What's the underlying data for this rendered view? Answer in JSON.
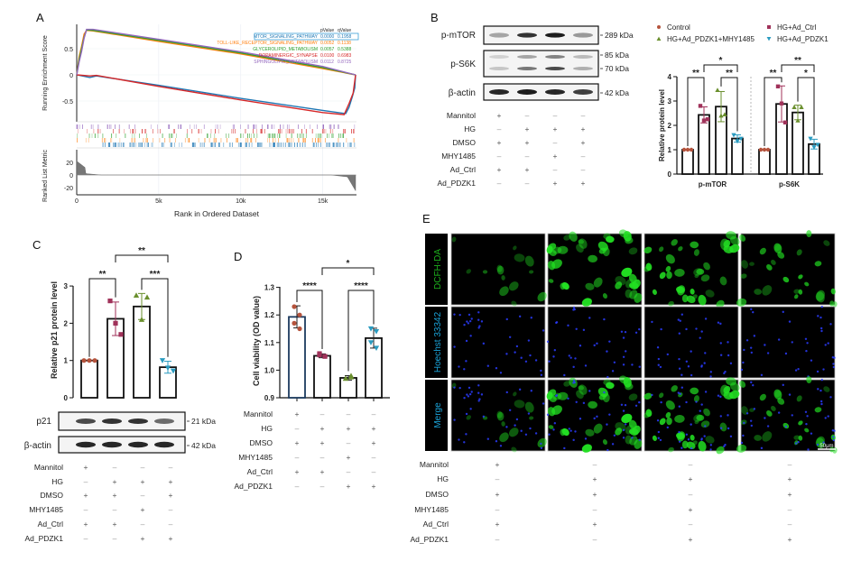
{
  "panel_labels": {
    "a": "A",
    "b": "B",
    "c": "C",
    "d": "D",
    "e": "E"
  },
  "chart_data": [
    {
      "type": "line",
      "panel": "A",
      "xlabel": "Rank in Ordered Dataset",
      "ylabel": "Running Enrichment Score",
      "ylabel2": "Ranked List Metric",
      "xticks": [
        "0",
        "5k",
        "10k",
        "15k"
      ],
      "xtick_values": [
        0,
        5000,
        10000,
        15000
      ],
      "yticks": [
        "0.5",
        "0",
        "-0.5"
      ],
      "ytick_values": [
        0.5,
        0,
        -0.5
      ],
      "y2ticks": [
        "20",
        "0",
        "-20"
      ],
      "y2tick_values": [
        20,
        0,
        -20
      ],
      "xlim": [
        0,
        17000
      ],
      "legend_header": {
        "pvalue": "pValue",
        "qvalue": "qValue"
      },
      "series": [
        {
          "name": "MTOR_SIGNALING_PATHWAY",
          "pvalue": "0.0000",
          "qvalue": "0.1958",
          "color": "#1f77b4",
          "highlight": true,
          "points": [
            [
              0,
              0
            ],
            [
              800,
              -0.05
            ],
            [
              1200,
              -0.02
            ],
            [
              5000,
              -0.2
            ],
            [
              10000,
              -0.45
            ],
            [
              15000,
              -0.68
            ],
            [
              16400,
              -0.74
            ],
            [
              16600,
              -0.62
            ],
            [
              16800,
              -0.42
            ],
            [
              16950,
              -0.25
            ],
            [
              17000,
              0
            ]
          ]
        },
        {
          "name": "TOLL-LIKE_RECEPTOR_SIGNALING_PATHWAY",
          "pvalue": "0.0052",
          "qvalue": "0.1138",
          "color": "#ff7f0e",
          "points": [
            [
              0,
              0
            ],
            [
              150,
              0.35
            ],
            [
              300,
              0.55
            ],
            [
              450,
              0.78
            ],
            [
              600,
              0.85
            ],
            [
              1000,
              0.84
            ],
            [
              5000,
              0.64
            ],
            [
              10000,
              0.4
            ],
            [
              15000,
              0.12
            ],
            [
              17000,
              0
            ]
          ]
        },
        {
          "name": "GLYCEROLIPID_METABOLISM",
          "pvalue": "0.0057",
          "qvalue": "0.5388",
          "color": "#2ca02c",
          "points": [
            [
              0,
              0
            ],
            [
              150,
              0.3
            ],
            [
              300,
              0.5
            ],
            [
              450,
              0.72
            ],
            [
              600,
              0.86
            ],
            [
              1000,
              0.85
            ],
            [
              5000,
              0.66
            ],
            [
              10000,
              0.42
            ],
            [
              15000,
              0.14
            ],
            [
              17000,
              0
            ]
          ]
        },
        {
          "name": "DOPAMINERGIC_SYNAPSE",
          "pvalue": "0.0100",
          "qvalue": "0.6983",
          "color": "#d62728",
          "points": [
            [
              0,
              0
            ],
            [
              800,
              -0.02
            ],
            [
              1200,
              -0.01
            ],
            [
              5000,
              -0.22
            ],
            [
              10000,
              -0.48
            ],
            [
              15000,
              -0.72
            ],
            [
              16300,
              -0.76
            ],
            [
              16600,
              -0.55
            ],
            [
              16850,
              -0.35
            ],
            [
              17000,
              0
            ]
          ]
        },
        {
          "name": "SPHINGOLIPID_METABOLISM",
          "pvalue": "0.0112",
          "qvalue": "0.8725",
          "color": "#9467bd",
          "points": [
            [
              0,
              0
            ],
            [
              150,
              0.25
            ],
            [
              300,
              0.45
            ],
            [
              450,
              0.7
            ],
            [
              600,
              0.87
            ],
            [
              1000,
              0.87
            ],
            [
              5000,
              0.68
            ],
            [
              10000,
              0.44
            ],
            [
              15000,
              0.16
            ],
            [
              17000,
              0
            ]
          ]
        }
      ]
    },
    {
      "type": "bar",
      "panel": "B",
      "ylabel": "Relative protein level",
      "ylim": [
        0,
        4
      ],
      "yticks": [
        "0",
        "1",
        "2",
        "3",
        "4"
      ],
      "categories": [
        "p-mTOR",
        "p-S6K"
      ],
      "series": [
        {
          "name": "Control",
          "color": "#b5533c",
          "marker": "circle",
          "values": [
            1.0,
            1.0
          ],
          "points": [
            [
              1,
              1,
              1
            ],
            [
              1,
              1,
              1
            ]
          ],
          "err": [
            0,
            0
          ]
        },
        {
          "name": "HG+Ad_Ctrl",
          "color": "#a0325a",
          "marker": "square",
          "values": [
            2.43,
            2.88
          ],
          "points": [
            [
              2.8,
              2.2,
              2.25
            ],
            [
              3.6,
              2.9,
              2.12
            ]
          ],
          "err": [
            0.33,
            0.74
          ]
        },
        {
          "name": "HG+Ad_PDZK1+MHY1485",
          "color": "#6a8f2d",
          "marker": "triangle-up",
          "values": [
            2.77,
            2.53
          ],
          "points": [
            [
              3.45,
              2.4,
              2.45
            ],
            [
              2.75,
              2.2,
              2.75
            ]
          ],
          "err": [
            0.62,
            0.3
          ]
        },
        {
          "name": "HG+Ad_PDZK1",
          "color": "#2a9bc0",
          "marker": "triangle-down",
          "values": [
            1.46,
            1.23
          ],
          "points": [
            [
              1.6,
              1.35,
              1.45
            ],
            [
              1.45,
              1.1,
              1.2
            ]
          ],
          "err": [
            0.15,
            0.2
          ]
        }
      ],
      "comparisons": [
        {
          "category": 0,
          "from": 0,
          "to": 1,
          "label": "**"
        },
        {
          "category": 0,
          "from": 2,
          "to": 3,
          "label": "**"
        },
        {
          "category": 0,
          "from": 1,
          "to": 3,
          "label": "*"
        },
        {
          "category": 1,
          "from": 0,
          "to": 1,
          "label": "**"
        },
        {
          "category": 1,
          "from": 2,
          "to": 3,
          "label": "*"
        },
        {
          "category": 1,
          "from": 1,
          "to": 3,
          "label": "**"
        }
      ]
    },
    {
      "type": "bar",
      "panel": "C",
      "ylabel": "Relative p21 protein level",
      "ylim": [
        0,
        3
      ],
      "yticks": [
        "0",
        "1",
        "2",
        "3"
      ],
      "categories": [
        "Control",
        "HG+Ad_Ctrl",
        "HG+Ad_PDZK1+MHY1485",
        "HG+Ad_PDZK1"
      ],
      "colors": [
        "#b5533c",
        "#a0325a",
        "#6a8f2d",
        "#2a9bc0"
      ],
      "markers": [
        "circle",
        "square",
        "triangle-up",
        "triangle-down"
      ],
      "values": [
        1.0,
        2.12,
        2.45,
        0.82
      ],
      "err": [
        0,
        0.45,
        0.35,
        0.16
      ],
      "points": [
        [
          1,
          1,
          1
        ],
        [
          2.6,
          2.0,
          1.7
        ],
        [
          2.75,
          2.1,
          2.7
        ],
        [
          1.0,
          0.8,
          0.72
        ]
      ],
      "comparisons": [
        {
          "from": 0,
          "to": 1,
          "label": "**"
        },
        {
          "from": 2,
          "to": 3,
          "label": "***"
        },
        {
          "from": 1,
          "to": 3,
          "label": "**"
        }
      ]
    },
    {
      "type": "bar",
      "panel": "D",
      "ylabel": "Cell viability (OD value)",
      "ylim": [
        0.9,
        1.3
      ],
      "yticks": [
        "0.9",
        "1.0",
        "1.1",
        "1.2",
        "1.3"
      ],
      "categories": [
        "Control",
        "HG+Ad_Ctrl",
        "HG+Ad_PDZK1+MHY1485",
        "HG+Ad_PDZK1"
      ],
      "colors": [
        "#b5533c",
        "#a0325a",
        "#6a8f2d",
        "#2a9bc0"
      ],
      "markers": [
        "circle",
        "square",
        "triangle-up",
        "triangle-down"
      ],
      "values": [
        1.193,
        1.052,
        0.972,
        1.116
      ],
      "err": [
        0.04,
        0.007,
        0.008,
        0.036
      ],
      "points": [
        [
          1.23,
          1.2,
          1.17,
          1.15
        ],
        [
          1.06,
          1.05,
          1.055,
          1.05
        ],
        [
          0.97,
          0.975,
          0.97,
          0.98
        ],
        [
          1.15,
          1.14,
          1.1,
          1.08
        ]
      ],
      "comparisons": [
        {
          "from": 0,
          "to": 1,
          "label": "****"
        },
        {
          "from": 2,
          "to": 3,
          "label": "****"
        },
        {
          "from": 1,
          "to": 3,
          "label": "*"
        }
      ]
    }
  ],
  "blot_b": {
    "rows": [
      {
        "label": "p-mTOR",
        "markers": [
          "289 kDa"
        ]
      },
      {
        "label": "p-S6K",
        "markers": [
          "85 kDa",
          "70 kDa"
        ]
      },
      {
        "label": "β-actin",
        "markers": [
          "42 kDa"
        ]
      }
    ]
  },
  "blot_c": {
    "rows": [
      {
        "label": "p21",
        "markers": [
          "21 kDa"
        ]
      },
      {
        "label": "β-actin",
        "markers": [
          "42 kDa"
        ]
      }
    ]
  },
  "treatments_b": [
    {
      "label": "Mannitol",
      "signs": [
        "+",
        "–",
        "–",
        "–"
      ]
    },
    {
      "label": "HG",
      "signs": [
        "–",
        "+",
        "+",
        "+"
      ]
    },
    {
      "label": "DMSO",
      "signs": [
        "+",
        "+",
        "–",
        "+"
      ]
    },
    {
      "label": "MHY1485",
      "signs": [
        "–",
        "–",
        "+",
        "–"
      ]
    },
    {
      "label": "Ad_Ctrl",
      "signs": [
        "+",
        "+",
        "–",
        "–"
      ]
    },
    {
      "label": "Ad_PDZK1",
      "signs": [
        "–",
        "–",
        "+",
        "+"
      ]
    }
  ],
  "treatments_c": [
    {
      "label": "Mannitol",
      "signs": [
        "+",
        "–",
        "–",
        "–"
      ]
    },
    {
      "label": "HG",
      "signs": [
        "–",
        "+",
        "+",
        "+"
      ]
    },
    {
      "label": "DMSO",
      "signs": [
        "+",
        "+",
        "–",
        "+"
      ]
    },
    {
      "label": "MHY1485",
      "signs": [
        "–",
        "–",
        "+",
        "–"
      ]
    },
    {
      "label": "Ad_Ctrl",
      "signs": [
        "+",
        "+",
        "–",
        "–"
      ]
    },
    {
      "label": "Ad_PDZK1",
      "signs": [
        "–",
        "–",
        "+",
        "+"
      ]
    }
  ],
  "treatments_d": [
    {
      "label": "Mannitol",
      "signs": [
        "+",
        "–",
        "–",
        "–"
      ]
    },
    {
      "label": "HG",
      "signs": [
        "–",
        "+",
        "+",
        "+"
      ]
    },
    {
      "label": "DMSO",
      "signs": [
        "+",
        "+",
        "–",
        "+"
      ]
    },
    {
      "label": "MHY1485",
      "signs": [
        "–",
        "–",
        "+",
        "–"
      ]
    },
    {
      "label": "Ad_Ctrl",
      "signs": [
        "+",
        "+",
        "–",
        "–"
      ]
    },
    {
      "label": "Ad_PDZK1",
      "signs": [
        "–",
        "–",
        "+",
        "+"
      ]
    }
  ],
  "treatments_e": [
    {
      "label": "Mannitol",
      "signs": [
        "+",
        "–",
        "–",
        "–"
      ]
    },
    {
      "label": "HG",
      "signs": [
        "–",
        "+",
        "+",
        "+"
      ]
    },
    {
      "label": "DMSO",
      "signs": [
        "+",
        "+",
        "–",
        "+"
      ]
    },
    {
      "label": "MHY1485",
      "signs": [
        "–",
        "–",
        "+",
        "–"
      ]
    },
    {
      "label": "Ad_Ctrl",
      "signs": [
        "+",
        "+",
        "–",
        "–"
      ]
    },
    {
      "label": "Ad_PDZK1",
      "signs": [
        "–",
        "–",
        "+",
        "+"
      ]
    }
  ],
  "microscopy": {
    "channels": [
      {
        "label": "DCFH-DA",
        "color": "#1db21d"
      },
      {
        "label": "Hoechst 33342",
        "color": "#1aa3d9"
      },
      {
        "label": "Merge",
        "color": "#1aa3d9"
      }
    ],
    "scale_bar": "50μm"
  }
}
